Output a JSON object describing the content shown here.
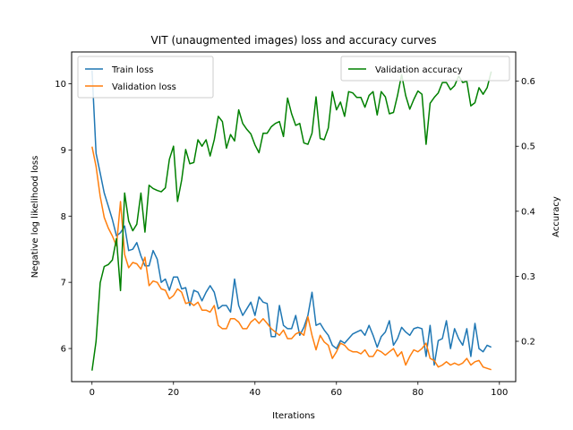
{
  "chart_data": {
    "type": "line",
    "title": "VIT (unaugmented images) loss and accuracy curves",
    "xlabel": "Iterations",
    "ylabel_left": "Negative log likelihood loss",
    "ylabel_right": "Accuracy",
    "xlim": [
      -5,
      104
    ],
    "ylim_left": [
      5.5,
      10.48
    ],
    "ylim_right": [
      0.138,
      0.645
    ],
    "x_ticks": [
      0,
      20,
      40,
      60,
      80,
      100
    ],
    "y_left_ticks": [
      6,
      7,
      8,
      9,
      10
    ],
    "y_right_ticks": [
      0.2,
      0.3,
      0.4,
      0.5,
      0.6
    ],
    "grid": false,
    "legend_left_position": "upper left",
    "legend_right_position": "upper right",
    "series": [
      {
        "name": "Train loss",
        "axis": "left",
        "color": "#1f77b4",
        "values": [
          10.2,
          8.95,
          8.65,
          8.35,
          8.15,
          7.95,
          7.7,
          7.75,
          7.85,
          7.48,
          7.5,
          7.6,
          7.4,
          7.25,
          7.25,
          7.48,
          7.35,
          7.0,
          7.05,
          6.88,
          7.08,
          7.08,
          6.9,
          6.92,
          6.65,
          6.88,
          6.85,
          6.72,
          6.85,
          6.95,
          6.85,
          6.6,
          6.65,
          6.65,
          6.55,
          7.05,
          6.65,
          6.5,
          6.6,
          6.7,
          6.5,
          6.78,
          6.7,
          6.68,
          6.18,
          6.18,
          6.65,
          6.35,
          6.3,
          6.3,
          6.5,
          6.2,
          6.32,
          6.5,
          6.85,
          6.35,
          6.38,
          6.28,
          6.2,
          6.05,
          6.0,
          6.12,
          6.08,
          6.15,
          6.22,
          6.25,
          6.28,
          6.2,
          6.35,
          6.2,
          6.02,
          6.18,
          6.25,
          6.42,
          6.05,
          6.15,
          6.32,
          6.25,
          6.2,
          6.3,
          6.32,
          6.3,
          5.88,
          6.35,
          5.75,
          6.12,
          6.15,
          6.42,
          6.0,
          6.3,
          6.15,
          6.05,
          6.3,
          5.88,
          6.38,
          6.0,
          5.95,
          6.05,
          6.02
        ]
      },
      {
        "name": "Validation loss",
        "axis": "left",
        "color": "#ff7f0e",
        "values": [
          9.05,
          8.75,
          8.3,
          7.98,
          7.82,
          7.7,
          7.55,
          8.22,
          7.42,
          7.22,
          7.3,
          7.28,
          7.2,
          7.38,
          6.95,
          7.02,
          7.0,
          6.9,
          6.88,
          6.75,
          6.8,
          6.9,
          6.85,
          6.68,
          6.7,
          6.65,
          6.7,
          6.58,
          6.58,
          6.55,
          6.65,
          6.35,
          6.3,
          6.3,
          6.45,
          6.45,
          6.4,
          6.3,
          6.3,
          6.4,
          6.45,
          6.38,
          6.45,
          6.38,
          6.3,
          6.25,
          6.2,
          6.28,
          6.15,
          6.15,
          6.22,
          6.25,
          6.2,
          6.48,
          6.2,
          5.98,
          6.2,
          6.1,
          6.05,
          5.85,
          5.95,
          6.08,
          6.05,
          5.98,
          5.95,
          5.95,
          5.92,
          5.98,
          5.88,
          5.88,
          5.98,
          5.95,
          5.9,
          5.95,
          6.0,
          5.88,
          5.95,
          5.75,
          5.88,
          5.98,
          5.95,
          6.0,
          6.08,
          5.85,
          5.82,
          5.72,
          5.75,
          5.8,
          5.75,
          5.78,
          5.75,
          5.78,
          5.85,
          5.75,
          5.8,
          5.82,
          5.72,
          5.7,
          5.68
        ]
      },
      {
        "name": "Validation accuracy",
        "axis": "right",
        "color": "#008000",
        "values": [
          0.155,
          0.2,
          0.29,
          0.315,
          0.318,
          0.325,
          0.358,
          0.278,
          0.428,
          0.385,
          0.37,
          0.38,
          0.428,
          0.368,
          0.44,
          0.435,
          0.432,
          0.43,
          0.436,
          0.48,
          0.5,
          0.415,
          0.448,
          0.495,
          0.473,
          0.475,
          0.51,
          0.5,
          0.51,
          0.485,
          0.51,
          0.546,
          0.538,
          0.497,
          0.518,
          0.508,
          0.556,
          0.535,
          0.526,
          0.519,
          0.502,
          0.49,
          0.52,
          0.52,
          0.53,
          0.535,
          0.538,
          0.515,
          0.574,
          0.55,
          0.532,
          0.535,
          0.505,
          0.503,
          0.52,
          0.576,
          0.512,
          0.51,
          0.528,
          0.584,
          0.556,
          0.568,
          0.546,
          0.584,
          0.582,
          0.575,
          0.575,
          0.56,
          0.578,
          0.584,
          0.548,
          0.584,
          0.576,
          0.55,
          0.552,
          0.578,
          0.61,
          0.578,
          0.557,
          0.572,
          0.585,
          0.58,
          0.503,
          0.566,
          0.575,
          0.582,
          0.598,
          0.598,
          0.587,
          0.593,
          0.608,
          0.598,
          0.6,
          0.562,
          0.567,
          0.59,
          0.58,
          0.59,
          0.615
        ]
      }
    ]
  }
}
